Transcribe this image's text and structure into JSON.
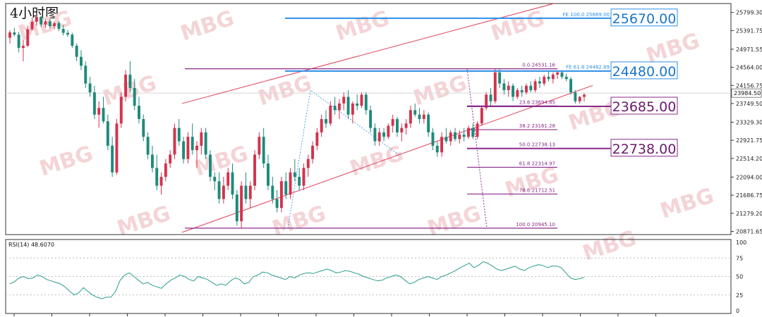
{
  "chart_data": {
    "type": "candlestick",
    "title": "4小时图",
    "price_axis": {
      "range": [
        20800,
        26000
      ],
      "ticks": [
        "25799.30",
        "25391.75",
        "24971.55",
        "24564.00",
        "24156.75",
        "23749.50",
        "23329.30",
        "22921.75",
        "22514.20",
        "22094.00",
        "21686.75",
        "21279.20",
        "20871.65"
      ],
      "current_price": "23984.50"
    },
    "candles": [
      [
        25230,
        25400,
        25100,
        25350
      ],
      [
        25350,
        25450,
        25260,
        25300
      ],
      [
        25300,
        25360,
        24900,
        25000
      ],
      [
        25000,
        25180,
        24700,
        25050
      ],
      [
        25050,
        25500,
        25020,
        25420
      ],
      [
        25420,
        25680,
        25380,
        25590
      ],
      [
        25590,
        25760,
        25500,
        25700
      ],
      [
        25700,
        25720,
        25470,
        25530
      ],
      [
        25530,
        25640,
        25450,
        25600
      ],
      [
        25600,
        25650,
        25440,
        25490
      ],
      [
        25490,
        25600,
        25420,
        25560
      ],
      [
        25560,
        25600,
        25380,
        25430
      ],
      [
        25430,
        25520,
        25280,
        25340
      ],
      [
        25340,
        25400,
        25250,
        25300
      ],
      [
        25300,
        25340,
        25000,
        25050
      ],
      [
        25050,
        25100,
        24700,
        24800
      ],
      [
        24800,
        24950,
        24500,
        24600
      ],
      [
        24600,
        24700,
        24100,
        24200
      ],
      [
        24200,
        24350,
        23900,
        24000
      ],
      [
        24000,
        24150,
        23400,
        23500
      ],
      [
        23500,
        23800,
        23200,
        23650
      ],
      [
        23650,
        23900,
        23300,
        23350
      ],
      [
        23350,
        23500,
        22700,
        22800
      ],
      [
        22800,
        23000,
        22100,
        22200
      ],
      [
        22200,
        23400,
        22150,
        23300
      ],
      [
        23300,
        24000,
        23200,
        23900
      ],
      [
        23900,
        24500,
        23800,
        24400
      ],
      [
        24400,
        24700,
        24000,
        24100
      ],
      [
        24100,
        24300,
        23600,
        23700
      ],
      [
        23700,
        23900,
        23300,
        23400
      ],
      [
        23400,
        23500,
        22900,
        23000
      ],
      [
        23000,
        23100,
        22500,
        22600
      ],
      [
        22600,
        22800,
        22200,
        22300
      ],
      [
        22300,
        22600,
        21800,
        21900
      ],
      [
        21900,
        22200,
        21700,
        22100
      ],
      [
        22100,
        22500,
        22000,
        22400
      ],
      [
        22400,
        22700,
        22300,
        22600
      ],
      [
        22600,
        23300,
        22500,
        23200
      ],
      [
        23200,
        23400,
        22800,
        22900
      ],
      [
        22900,
        23000,
        22400,
        22500
      ],
      [
        22500,
        23100,
        22400,
        23000
      ],
      [
        23000,
        23300,
        22600,
        22700
      ],
      [
        22700,
        22900,
        22300,
        22800
      ],
      [
        22800,
        23200,
        22600,
        23100
      ],
      [
        23100,
        23200,
        22500,
        22600
      ],
      [
        22600,
        22700,
        22000,
        22100
      ],
      [
        22100,
        22200,
        21800,
        22000
      ],
      [
        22000,
        22200,
        21500,
        21600
      ],
      [
        21600,
        22100,
        21500,
        21900
      ],
      [
        21900,
        22300,
        21800,
        22200
      ],
      [
        22200,
        22400,
        21600,
        21700
      ],
      [
        21700,
        21800,
        21000,
        21100
      ],
      [
        21100,
        22000,
        20945,
        21900
      ],
      [
        21900,
        22200,
        21500,
        21600
      ],
      [
        21600,
        22000,
        21400,
        21900
      ],
      [
        21900,
        22700,
        21800,
        22600
      ],
      [
        22600,
        23100,
        22500,
        23000
      ],
      [
        23000,
        23200,
        22300,
        22400
      ],
      [
        22400,
        22600,
        21800,
        21900
      ],
      [
        21900,
        22100,
        21500,
        21600
      ],
      [
        21600,
        21800,
        21300,
        21400
      ],
      [
        21400,
        22100,
        21300,
        22000
      ],
      [
        22000,
        22200,
        21600,
        21700
      ],
      [
        21700,
        22300,
        21600,
        22200
      ],
      [
        22200,
        22500,
        22000,
        22100
      ],
      [
        22100,
        22300,
        21800,
        21900
      ],
      [
        21900,
        22400,
        21800,
        22300
      ],
      [
        22300,
        22600,
        22100,
        22500
      ],
      [
        22500,
        22900,
        22400,
        22800
      ],
      [
        22800,
        23200,
        22700,
        23100
      ],
      [
        23100,
        23500,
        23000,
        23400
      ],
      [
        23400,
        23600,
        23200,
        23300
      ],
      [
        23300,
        23800,
        23250,
        23700
      ],
      [
        23700,
        23900,
        23500,
        23600
      ],
      [
        23600,
        23850,
        23400,
        23750
      ],
      [
        23750,
        24000,
        23600,
        23900
      ],
      [
        23900,
        24050,
        23400,
        23500
      ],
      [
        23500,
        23800,
        23300,
        23750
      ],
      [
        23750,
        23950,
        23600,
        23700
      ],
      [
        23700,
        24000,
        23650,
        23950
      ],
      [
        23950,
        24010,
        23500,
        23600
      ],
      [
        23600,
        23700,
        23100,
        23200
      ],
      [
        23200,
        23300,
        22800,
        22900
      ],
      [
        22900,
        23200,
        22800,
        23100
      ],
      [
        23100,
        23200,
        22900,
        23000
      ],
      [
        23000,
        23300,
        22950,
        23250
      ],
      [
        23250,
        23500,
        23100,
        23400
      ],
      [
        23400,
        23450,
        23000,
        23100
      ],
      [
        23100,
        23300,
        22900,
        23200
      ],
      [
        23200,
        23400,
        23050,
        23300
      ],
      [
        23300,
        23700,
        23200,
        23600
      ],
      [
        23600,
        23750,
        23450,
        23500
      ],
      [
        23500,
        23650,
        23300,
        23400
      ],
      [
        23400,
        23600,
        23300,
        23500
      ],
      [
        23500,
        23550,
        23000,
        23100
      ],
      [
        23100,
        23200,
        22700,
        22800
      ],
      [
        22800,
        22900,
        22550,
        22650
      ],
      [
        22650,
        23100,
        22550,
        23000
      ],
      [
        23000,
        23200,
        22850,
        22900
      ],
      [
        22900,
        23150,
        22800,
        23100
      ],
      [
        23100,
        23200,
        22900,
        22950
      ],
      [
        22950,
        23150,
        22850,
        23050
      ],
      [
        23050,
        23200,
        22900,
        23000
      ],
      [
        23000,
        23250,
        22950,
        23200
      ],
      [
        23200,
        23300,
        22950,
        23000
      ],
      [
        23000,
        23350,
        22950,
        23300
      ],
      [
        23300,
        23700,
        23250,
        23650
      ],
      [
        23650,
        24000,
        23600,
        23950
      ],
      [
        23950,
        24100,
        23700,
        23800
      ],
      [
        23800,
        24531,
        23750,
        24450
      ],
      [
        24450,
        24531,
        24100,
        24200
      ],
      [
        24200,
        24300,
        23950,
        24050
      ],
      [
        24050,
        24250,
        23900,
        24150
      ],
      [
        24150,
        24200,
        23800,
        23900
      ],
      [
        23900,
        24100,
        23850,
        24050
      ],
      [
        24050,
        24150,
        23900,
        24000
      ],
      [
        24000,
        24200,
        23950,
        24150
      ],
      [
        24150,
        24250,
        24000,
        24050
      ],
      [
        24050,
        24300,
        24000,
        24250
      ],
      [
        24250,
        24350,
        24100,
        24200
      ],
      [
        24200,
        24400,
        24150,
        24350
      ],
      [
        24350,
        24480,
        24250,
        24300
      ],
      [
        24300,
        24450,
        24200,
        24400
      ],
      [
        24400,
        24470,
        24300,
        24450
      ],
      [
        24450,
        24480,
        24300,
        24350
      ],
      [
        24350,
        24420,
        24250,
        24300
      ],
      [
        24300,
        24350,
        23950,
        24000
      ],
      [
        24000,
        24050,
        23750,
        23800
      ],
      [
        23800,
        23920,
        23750,
        23900
      ],
      [
        23900,
        23980,
        23800,
        23950
      ]
    ],
    "channel": {
      "color": "#e0405a",
      "upper": [
        [
          0.5,
          23750
        ],
        [
          40,
          26000
        ]
      ],
      "lower": [
        [
          0.5,
          20871
        ],
        [
          40,
          24156
        ]
      ]
    },
    "key_levels": [
      {
        "label": "25670.00",
        "value": 25670,
        "color": "#2c8fe6",
        "box_border": "#2c8fe6"
      },
      {
        "label": "24480.00",
        "value": 24480,
        "color": "#2c8fe6",
        "box_border": "#2c8fe6"
      },
      {
        "label": "23685.00",
        "value": 23685,
        "color": "#8a2a8a",
        "box_border": "#8a2a8a"
      },
      {
        "label": "22738.00",
        "value": 22738,
        "color": "#8a2a8a",
        "box_border": "#8a2a8a"
      }
    ],
    "fib_retracement": [
      {
        "label": "0.0  24531.16",
        "value": 24531.16
      },
      {
        "label": "23.6  23694.85",
        "value": 23694.85
      },
      {
        "label": "38.2  23161.28",
        "value": 23161.28
      },
      {
        "label": "50.0  22738.13",
        "value": 22738.13
      },
      {
        "label": "61.8  22314.97",
        "value": 22314.97
      },
      {
        "label": "78.6  21712.51",
        "value": 21712.51
      },
      {
        "label": "100.0  20945.10",
        "value": 20945.1
      }
    ],
    "fib_expansion": [
      {
        "label": "FE 100.0  25669.00",
        "value": 25669.0
      },
      {
        "label": "FE 61.8  24482.89",
        "value": 24482.89
      }
    ],
    "rsi": {
      "label": "RSI(14) 48.6070",
      "ticks": [
        "100",
        "75",
        "50",
        "25",
        "0"
      ],
      "values": [
        40,
        43,
        48,
        50,
        47,
        48,
        52,
        50,
        46,
        44,
        42,
        40,
        36,
        30,
        25,
        28,
        35,
        30,
        25,
        22,
        20,
        22,
        22,
        30,
        45,
        52,
        55,
        50,
        45,
        40,
        42,
        38,
        36,
        34,
        40,
        45,
        48,
        52,
        50,
        46,
        44,
        50,
        48,
        46,
        42,
        38,
        40,
        38,
        44,
        48,
        46,
        40,
        42,
        50,
        52,
        56,
        55,
        52,
        50,
        48,
        46,
        50,
        48,
        52,
        54,
        55,
        54,
        56,
        58,
        60,
        58,
        55,
        56,
        58,
        57,
        55,
        53,
        50,
        48,
        46,
        44,
        45,
        48,
        50,
        52,
        50,
        45,
        40,
        42,
        46,
        48,
        50,
        48,
        46,
        50,
        52,
        55,
        58,
        62,
        65,
        68,
        62,
        65,
        70,
        68,
        64,
        60,
        58,
        60,
        62,
        64,
        60,
        58,
        62,
        64,
        66,
        65,
        62,
        64,
        64,
        62,
        55,
        48,
        46,
        47,
        49
      ]
    },
    "watermark": "MBG"
  }
}
